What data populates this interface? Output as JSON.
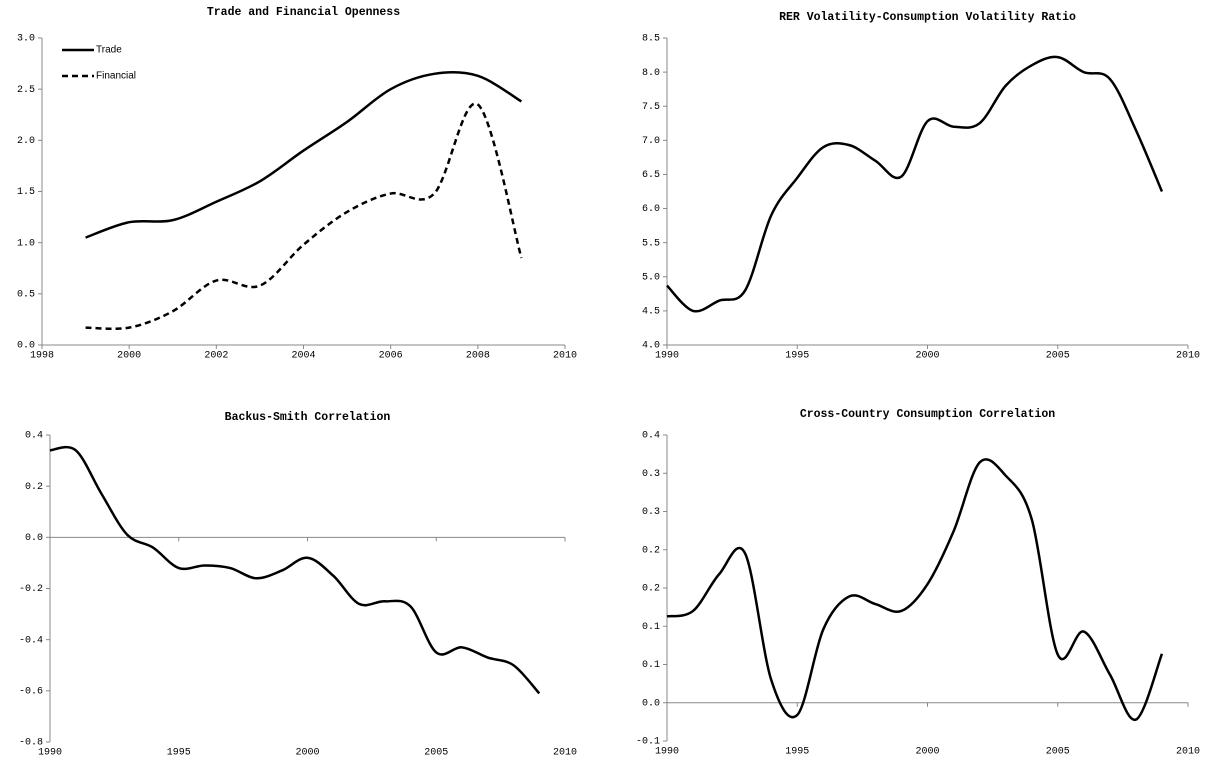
{
  "chart_data": [
    {
      "type": "line",
      "title": "Trade and Financial Openness",
      "x": [
        1999,
        2000,
        2001,
        2002,
        2003,
        2004,
        2005,
        2006,
        2007,
        2008,
        2009
      ],
      "xlim": [
        1998,
        2010
      ],
      "xticks": [
        1998,
        2000,
        2002,
        2004,
        2006,
        2008,
        2010
      ],
      "ylim": [
        0,
        3
      ],
      "yticks": [
        {
          "value": 0,
          "label": "0.0"
        },
        0.5,
        {
          "value": 1,
          "label": "1.0"
        },
        1.5,
        {
          "value": 2,
          "label": "2.0"
        },
        2.5,
        {
          "value": 3,
          "label": "3.0"
        }
      ],
      "legend": "top-left",
      "series": [
        {
          "name": "Trade",
          "color": "#000000",
          "line_style": "solid",
          "values": [
            1.05,
            1.2,
            1.22,
            1.4,
            1.6,
            1.9,
            2.18,
            2.5,
            2.65,
            2.63,
            2.38
          ]
        },
        {
          "name": "Financial",
          "color": "#000000",
          "line_style": "dashed",
          "values": [
            0.17,
            0.17,
            0.33,
            0.63,
            0.58,
            0.98,
            1.3,
            1.48,
            1.48,
            2.35,
            0.85
          ]
        }
      ]
    },
    {
      "type": "line",
      "title": "RER Volatility-Consumption Volatility Ratio",
      "x": [
        1990,
        1991,
        1992,
        1993,
        1994,
        1995,
        1996,
        1997,
        1998,
        1999,
        2000,
        2001,
        2002,
        2003,
        2004,
        2005,
        2006,
        2007,
        2008,
        2009
      ],
      "xlim": [
        1990,
        2010
      ],
      "xticks": [
        1990,
        1995,
        2000,
        2005,
        2010
      ],
      "ylim": [
        4,
        8.5
      ],
      "yticks": [
        {
          "value": 4,
          "label": "4.0"
        },
        4.5,
        {
          "value": 5,
          "label": "5.0"
        },
        5.5,
        {
          "value": 6,
          "label": "6.0"
        },
        6.5,
        {
          "value": 7,
          "label": "7.0"
        },
        7.5,
        {
          "value": 8,
          "label": "8.0"
        },
        8.5
      ],
      "color": "#000000",
      "values": [
        4.87,
        4.5,
        4.65,
        4.8,
        5.9,
        6.45,
        6.9,
        6.93,
        6.7,
        6.47,
        7.28,
        7.2,
        7.25,
        7.8,
        8.1,
        8.22,
        8.0,
        7.9,
        7.15,
        6.25
      ]
    },
    {
      "type": "line",
      "title": "Backus-Smith Correlation",
      "x": [
        1990,
        1991,
        1992,
        1993,
        1994,
        1995,
        1996,
        1997,
        1998,
        1999,
        2000,
        2001,
        2002,
        2003,
        2004,
        2005,
        2006,
        2007,
        2008,
        2009
      ],
      "xlim": [
        1990,
        2010
      ],
      "xticks": [
        1990,
        1995,
        2000,
        2005,
        2010
      ],
      "ylim": [
        -0.8,
        0.4
      ],
      "yticks": [
        0.4,
        0.2,
        {
          "value": 0,
          "label": "0.0"
        },
        -0.2,
        -0.4,
        -0.6,
        -0.8
      ],
      "color": "#000000",
      "values": [
        0.34,
        0.34,
        0.17,
        0.01,
        -0.04,
        -0.12,
        -0.11,
        -0.12,
        -0.16,
        -0.13,
        -0.08,
        -0.15,
        -0.26,
        -0.25,
        -0.27,
        -0.45,
        -0.43,
        -0.47,
        -0.5,
        -0.61
      ]
    },
    {
      "type": "line",
      "title": "Cross-Country Consumption Correlation",
      "x": [
        1990,
        1991,
        1992,
        1993,
        1994,
        1995,
        1996,
        1997,
        1998,
        1999,
        2000,
        2001,
        2002,
        2003,
        2004,
        2005,
        2006,
        2007,
        2008,
        2009
      ],
      "xlim": [
        1990,
        2010
      ],
      "xticks": [
        1990,
        1995,
        2000,
        2005,
        2010
      ],
      "ylim": [
        -0.05,
        0.35
      ],
      "yticks": [
        {
          "value": 0.35,
          "label": "0.4"
        },
        {
          "value": 0.3,
          "label": "0.3"
        },
        {
          "value": 0.25,
          "label": "0.3"
        },
        {
          "value": 0.2,
          "label": "0.2"
        },
        {
          "value": 0.15,
          "label": "0.2"
        },
        {
          "value": 0.1,
          "label": "0.1"
        },
        {
          "value": 0.05,
          "label": "0.1"
        },
        {
          "value": 0,
          "label": "0.0"
        },
        {
          "value": -0.05,
          "label": "-0.1"
        }
      ],
      "color": "#000000",
      "values": [
        0.113,
        0.12,
        0.168,
        0.195,
        0.03,
        -0.016,
        0.096,
        0.139,
        0.129,
        0.12,
        0.155,
        0.224,
        0.314,
        0.297,
        0.24,
        0.063,
        0.093,
        0.037,
        -0.022,
        0.064
      ]
    }
  ]
}
